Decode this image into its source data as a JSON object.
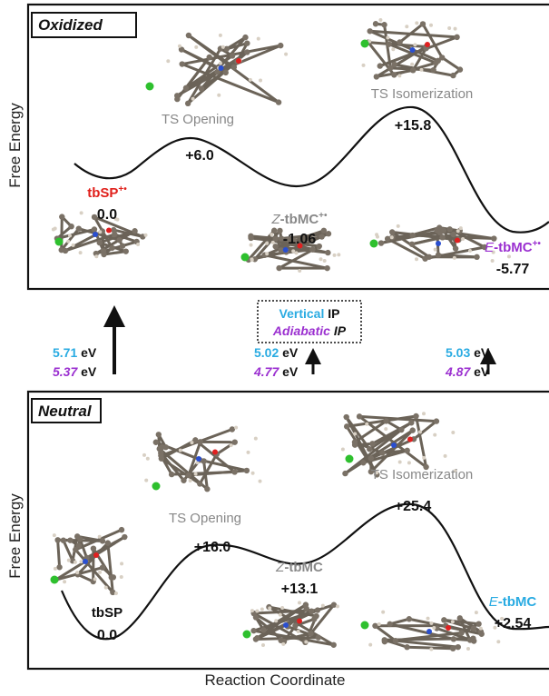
{
  "oxidized": {
    "title": "Oxidized",
    "y_axis_label": "Free Energy",
    "ts_opening": {
      "label": "TS Opening",
      "energy": "+6.0"
    },
    "ts_isomerization": {
      "label": "TS Isomerization",
      "energy": "+15.8"
    },
    "tbsp": {
      "name": "tbSP",
      "superscript": "+•",
      "energy": "0.0"
    },
    "z_tbmc": {
      "prefix": "Z",
      "name": "-tbMC",
      "superscript": "+•",
      "energy": "-1.06"
    },
    "e_tbmc": {
      "prefix": "E",
      "name": "-tbMC",
      "superscript": "+•",
      "energy": "-5.77"
    }
  },
  "ionization": {
    "legend": {
      "vertical": "Vertical",
      "vertical_ip": "IP",
      "adiabatic": "Adiabatic",
      "adiabatic_ip": "IP"
    },
    "values": [
      {
        "vertical": {
          "value": "5.71",
          "unit": "eV"
        },
        "adiabatic": {
          "value": "5.37",
          "unit": "eV"
        }
      },
      {
        "vertical": {
          "value": "5.02",
          "unit": "eV"
        },
        "adiabatic": {
          "value": "4.77",
          "unit": "eV"
        }
      },
      {
        "vertical": {
          "value": "5.03",
          "unit": "eV"
        },
        "adiabatic": {
          "value": "4.87",
          "unit": "eV"
        }
      }
    ]
  },
  "neutral": {
    "title": "Neutral",
    "y_axis_label": "Free Energy",
    "ts_opening": {
      "label": "TS Opening",
      "energy": "+16.0"
    },
    "ts_isomerization": {
      "label": "TS Isomerization",
      "energy": "+25.4"
    },
    "tbsp": {
      "name": "tbSP",
      "energy": "0.0"
    },
    "z_tbmc": {
      "prefix": "Z",
      "name": "-tbMC",
      "energy": "+13.1"
    },
    "e_tbmc": {
      "prefix": "E",
      "name": "-tbMC",
      "energy": "+2.54"
    }
  },
  "x_axis_label": "Reaction Coordinate"
}
